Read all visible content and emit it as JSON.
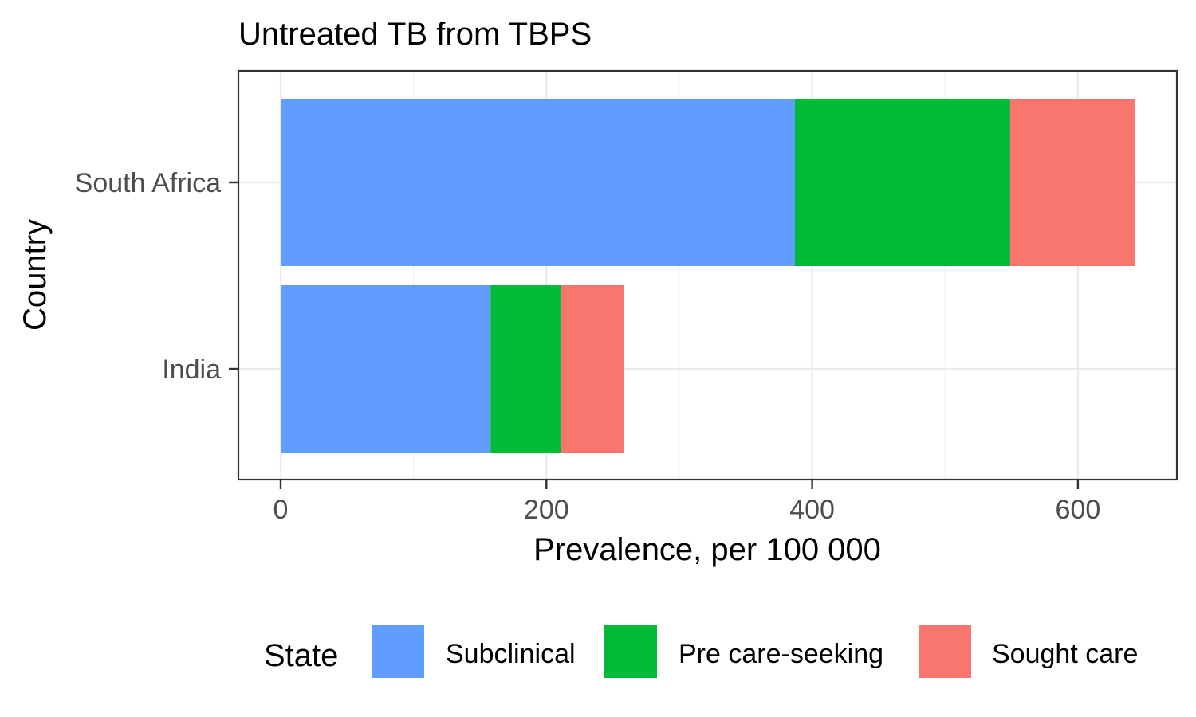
{
  "chart_data": {
    "type": "bar",
    "orientation": "horizontal",
    "stacked": true,
    "title": "Untreated TB from TBPS",
    "xlabel": "Prevalence, per 100 000",
    "ylabel": "Country",
    "xlim": [
      0,
      640
    ],
    "xticks": [
      0,
      200,
      400,
      600
    ],
    "xtick_labels": [
      "0",
      "200",
      "400",
      "600"
    ],
    "categories": [
      "South Africa",
      "India"
    ],
    "grid": true,
    "legend": {
      "title": "State",
      "position": "bottom",
      "items": [
        "Subclinical",
        "Pre care-seeking",
        "Sought care"
      ]
    },
    "series": [
      {
        "name": "Subclinical",
        "color": "#619CFF",
        "values": [
          387,
          158
        ]
      },
      {
        "name": "Pre care-seeking",
        "color": "#00BA38",
        "values": [
          162,
          53
        ]
      },
      {
        "name": "Sought care",
        "color": "#F8766D",
        "values": [
          94,
          47
        ]
      }
    ]
  }
}
